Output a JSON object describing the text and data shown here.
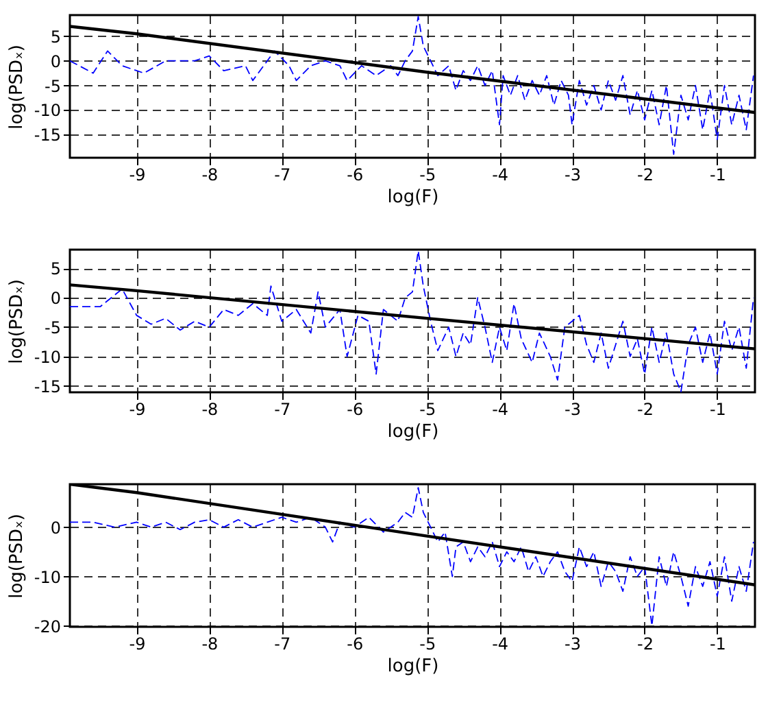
{
  "chart_data": [
    {
      "type": "line",
      "xlabel": "log(F)",
      "ylabel": "log(PSDₓ)",
      "xlim": [
        -9.92,
        -0.48
      ],
      "xticks": [
        -9,
        -8,
        -7,
        -6,
        -5,
        -4,
        -3,
        -2,
        -1
      ],
      "ylim": [
        -19.7,
        9.3
      ],
      "yticks": [
        -15,
        -10,
        -5,
        0,
        5
      ],
      "grid": true,
      "series": [
        {
          "color": "#0000ff",
          "line_style": "dashed",
          "x": [
            -9.92,
            -9.6,
            -9.4,
            -9.2,
            -8.9,
            -8.6,
            -8.2,
            -8.0,
            -7.8,
            -7.5,
            -7.4,
            -7.2,
            -7.1,
            -6.9,
            -6.8,
            -6.6,
            -6.4,
            -6.2,
            -6.1,
            -5.9,
            -5.7,
            -5.5,
            -5.4,
            -5.3,
            -5.2,
            -5.12,
            -5.05,
            -4.95,
            -4.85,
            -4.7,
            -4.6,
            -4.5,
            -4.4,
            -4.3,
            -4.2,
            -4.1,
            -4.0,
            -3.95,
            -3.85,
            -3.75,
            -3.65,
            -3.55,
            -3.45,
            -3.35,
            -3.25,
            -3.15,
            -3.05,
            -3.0,
            -2.9,
            -2.8,
            -2.7,
            -2.6,
            -2.5,
            -2.4,
            -2.3,
            -2.2,
            -2.1,
            -2.0,
            -1.9,
            -1.8,
            -1.7,
            -1.6,
            -1.5,
            -1.4,
            -1.3,
            -1.2,
            -1.1,
            -1.0,
            -0.9,
            -0.8,
            -0.7,
            -0.6,
            -0.5
          ],
          "values": [
            0,
            -2.5,
            2,
            -1,
            -2.5,
            0,
            0,
            1,
            -2,
            -1,
            -4,
            0,
            2,
            -1,
            -4,
            -1,
            0,
            -1,
            -4,
            -1,
            -3,
            -1,
            -3,
            0,
            2,
            9,
            3,
            0,
            -3,
            -1,
            -6,
            -2,
            -4,
            -1,
            -5,
            -2,
            -13,
            -3,
            -7,
            -3,
            -8,
            -4,
            -7,
            -3,
            -9,
            -4,
            -7,
            -13,
            -4,
            -9,
            -5,
            -10,
            -4,
            -8,
            -3,
            -11,
            -6,
            -12,
            -6,
            -13,
            -5,
            -19,
            -7,
            -12,
            -5,
            -14,
            -6,
            -16,
            -5,
            -13,
            -7,
            -14,
            -3
          ]
        },
        {
          "color": "#000000",
          "line_style": "solid",
          "x": [
            -9.92,
            -9,
            -5,
            -0.48
          ],
          "values": [
            7,
            5.5,
            -2.3,
            -10.5
          ]
        }
      ]
    },
    {
      "type": "line",
      "xlabel": "log(F)",
      "ylabel": "log(PSDₓ)",
      "xlim": [
        -9.92,
        -0.48
      ],
      "xticks": [
        -9,
        -8,
        -7,
        -6,
        -5,
        -4,
        -3,
        -2,
        -1
      ],
      "ylim": [
        -16.1,
        8.2
      ],
      "yticks": [
        -15,
        -10,
        -5,
        0,
        5
      ],
      "grid": true,
      "series": [
        {
          "color": "#0000ff",
          "line_style": "dashed",
          "x": [
            -9.92,
            -9.5,
            -9.2,
            -9.0,
            -8.8,
            -8.6,
            -8.4,
            -8.2,
            -8.0,
            -7.8,
            -7.6,
            -7.4,
            -7.2,
            -7.15,
            -7.0,
            -6.8,
            -6.6,
            -6.5,
            -6.4,
            -6.2,
            -6.1,
            -5.95,
            -5.8,
            -5.7,
            -5.6,
            -5.4,
            -5.3,
            -5.2,
            -5.12,
            -5.05,
            -4.95,
            -4.85,
            -4.7,
            -4.6,
            -4.5,
            -4.4,
            -4.3,
            -4.2,
            -4.1,
            -4.0,
            -3.9,
            -3.8,
            -3.7,
            -3.55,
            -3.45,
            -3.3,
            -3.2,
            -3.1,
            -2.9,
            -2.8,
            -2.7,
            -2.6,
            -2.5,
            -2.4,
            -2.3,
            -2.2,
            -2.1,
            -2.0,
            -1.9,
            -1.8,
            -1.7,
            -1.6,
            -1.5,
            -1.4,
            -1.3,
            -1.2,
            -1.1,
            -1.0,
            -0.9,
            -0.8,
            -0.7,
            -0.6,
            -0.5
          ],
          "values": [
            -1.5,
            -1.5,
            1.5,
            -3,
            -4.5,
            -3.5,
            -5.5,
            -4,
            -5,
            -2,
            -3,
            -1,
            -3,
            2,
            -4,
            -2,
            -6,
            1,
            -5,
            -2,
            -10,
            -3,
            -4,
            -13,
            -2,
            -4,
            0,
            1,
            8,
            2,
            -4,
            -9,
            -5,
            -10,
            -6,
            -8,
            0,
            -5,
            -11,
            -5,
            -9,
            -1,
            -7,
            -11,
            -6,
            -10,
            -14,
            -5,
            -3,
            -8,
            -11,
            -6,
            -12,
            -8,
            -4,
            -10,
            -7,
            -13,
            -5,
            -11,
            -6,
            -13,
            -16,
            -8,
            -5,
            -11,
            -6,
            -13,
            -4,
            -9,
            -5,
            -12,
            0
          ]
        },
        {
          "color": "#000000",
          "line_style": "solid",
          "x": [
            -9.92,
            -9,
            -5,
            -0.48
          ],
          "values": [
            2.2,
            1.2,
            -3.5,
            -8.7
          ]
        }
      ]
    },
    {
      "type": "line",
      "xlabel": "log(F)",
      "ylabel": "log(PSDₓ)",
      "xlim": [
        -9.92,
        -0.48
      ],
      "xticks": [
        -9,
        -8,
        -7,
        -6,
        -5,
        -4,
        -3,
        -2,
        -1
      ],
      "ylim": [
        -20.2,
        8.7
      ],
      "yticks": [
        -20,
        -10,
        0
      ],
      "grid": true,
      "series": [
        {
          "color": "#0000ff",
          "line_style": "dashed",
          "x": [
            -9.92,
            -9.6,
            -9.3,
            -9.0,
            -8.8,
            -8.6,
            -8.4,
            -8.2,
            -8.0,
            -7.8,
            -7.6,
            -7.4,
            -7.2,
            -7.0,
            -6.8,
            -6.6,
            -6.4,
            -6.3,
            -6.2,
            -6.0,
            -5.8,
            -5.6,
            -5.4,
            -5.3,
            -5.2,
            -5.12,
            -5.05,
            -4.95,
            -4.85,
            -4.75,
            -4.65,
            -4.6,
            -4.5,
            -4.4,
            -4.3,
            -4.2,
            -4.1,
            -4.0,
            -3.9,
            -3.8,
            -3.7,
            -3.6,
            -3.5,
            -3.4,
            -3.3,
            -3.2,
            -3.1,
            -3.0,
            -2.9,
            -2.8,
            -2.7,
            -2.6,
            -2.5,
            -2.4,
            -2.3,
            -2.2,
            -2.1,
            -2.0,
            -1.9,
            -1.8,
            -1.7,
            -1.6,
            -1.5,
            -1.4,
            -1.3,
            -1.2,
            -1.1,
            -1.0,
            -0.9,
            -0.8,
            -0.7,
            -0.6,
            -0.5
          ],
          "values": [
            1,
            1,
            0,
            1,
            0,
            1,
            -0.5,
            1,
            1.5,
            0,
            1.5,
            0,
            1,
            2,
            1,
            2,
            0,
            -3,
            1,
            0,
            2,
            -1,
            1,
            3,
            2,
            8,
            3,
            0,
            -3,
            -1,
            -10,
            -4,
            -3,
            -7,
            -4,
            -6,
            -3,
            -8,
            -5,
            -7,
            -4,
            -9,
            -6,
            -10,
            -7,
            -5,
            -9,
            -11,
            -4,
            -8,
            -5,
            -12,
            -7,
            -9,
            -13,
            -6,
            -10,
            -8,
            -20,
            -6,
            -12,
            -5,
            -10,
            -16,
            -8,
            -12,
            -7,
            -14,
            -6,
            -15,
            -8,
            -13,
            -3
          ]
        },
        {
          "color": "#000000",
          "line_style": "solid",
          "x": [
            -9.92,
            -9,
            -5,
            -0.48
          ],
          "values": [
            8.7,
            7,
            -1.8,
            -11.7
          ]
        }
      ]
    }
  ]
}
